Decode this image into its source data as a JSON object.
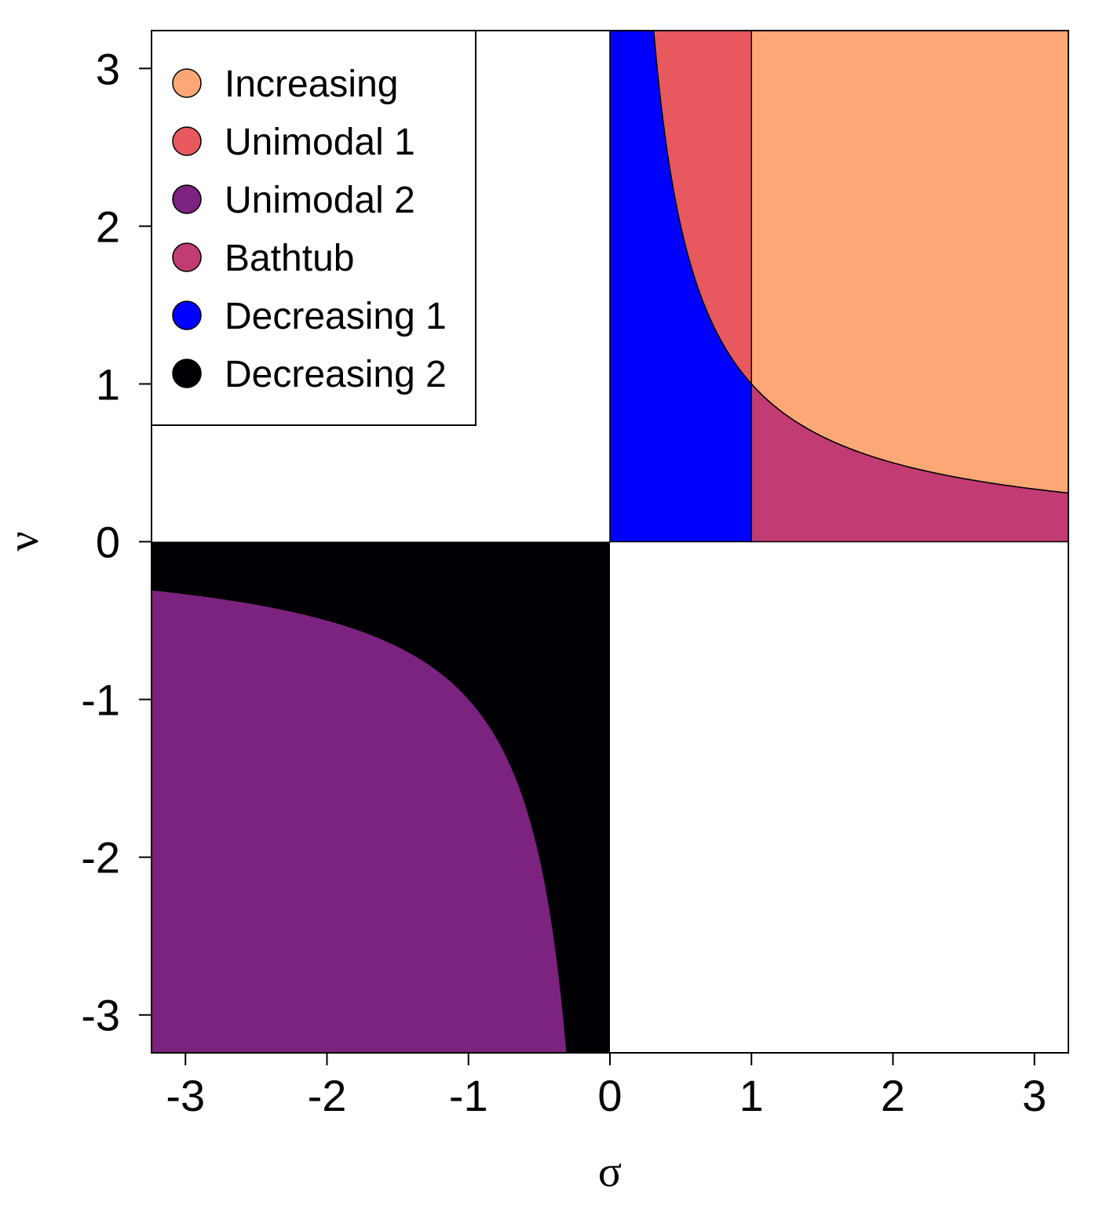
{
  "chart_data": {
    "type": "area",
    "title": "",
    "xlabel": "σ",
    "ylabel": "ν",
    "xlim": [
      -3.24,
      3.24
    ],
    "ylim": [
      -3.24,
      3.24
    ],
    "xticks": [
      -3,
      -2,
      -1,
      0,
      1,
      2,
      3
    ],
    "yticks": [
      -3,
      -2,
      -1,
      0,
      1,
      2,
      3
    ],
    "xtick_labels": [
      "-3",
      "-2",
      "-1",
      "0",
      "1",
      "2",
      "3"
    ],
    "ytick_labels": [
      "-3",
      "-2",
      "-1",
      "0",
      "1",
      "2",
      "3"
    ],
    "grid": false,
    "legend_position": "top-left",
    "boundary_curve": "ν = 1/σ",
    "series": [
      {
        "name": "Increasing",
        "color": "#FCA775",
        "region": "σ ≥ 1, ν ≥ 1/σ"
      },
      {
        "name": "Unimodal 1",
        "color": "#E8585F",
        "region": "0 < σ < 1, ν ≥ 1/σ"
      },
      {
        "name": "Unimodal 2",
        "color": "#7B237E",
        "region": "σ < 0, ν < 1/σ"
      },
      {
        "name": "Bathtub",
        "color": "#C13C72",
        "region": "σ ≥ 1, 0 < ν < 1/σ"
      },
      {
        "name": "Decreasing 1",
        "color": "#0000FF",
        "region": "0 < σ < 1, 0 < ν < 1/σ"
      },
      {
        "name": "Decreasing 2",
        "color": "#000004",
        "region": "σ < 0, 1/σ < ν < 0"
      }
    ]
  }
}
